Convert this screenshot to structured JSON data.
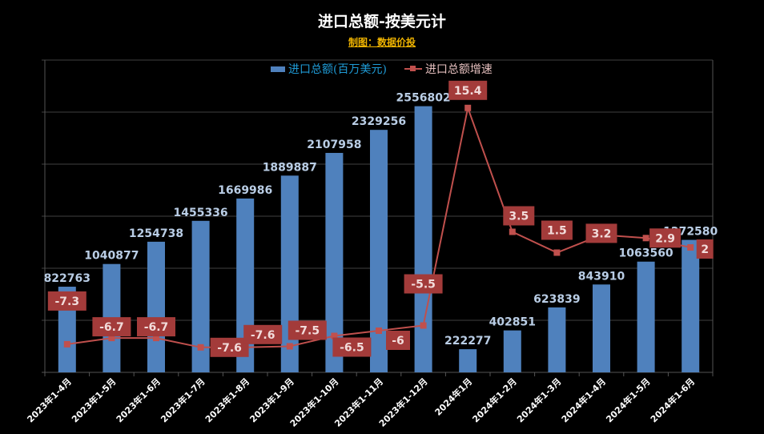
{
  "chart_data": {
    "type": "bar+line",
    "title": "进口总额-按美元计",
    "subtitle": "制图：数据价投",
    "categories": [
      "2023年1-4月",
      "2023年1-5月",
      "2023年1-6月",
      "2023年1-7月",
      "2023年1-8月",
      "2023年1-9月",
      "2023年1-10月",
      "2023年1-11月",
      "2023年1-12月",
      "2024年1月",
      "2024年1-2月",
      "2024年1-3月",
      "2024年1-4月",
      "2024年1-5月",
      "2024年1-6月"
    ],
    "series": [
      {
        "name": "进口总额(百万美元)",
        "type": "bar",
        "axis": "primary",
        "color": "#4f81bd",
        "values": [
          822763,
          1040877,
          1254738,
          1455336,
          1669986,
          1889887,
          2107958,
          2329256,
          2556802,
          222277,
          402851,
          623839,
          843910,
          1063560,
          1272580
        ]
      },
      {
        "name": "进口总额增速",
        "type": "line",
        "axis": "secondary",
        "color": "#c0504d",
        "values": [
          -7.3,
          -6.7,
          -6.7,
          -7.6,
          -7.6,
          -7.5,
          -6.5,
          -6,
          -5.5,
          15.4,
          3.5,
          1.5,
          3.2,
          2.9,
          2
        ]
      }
    ],
    "ylim": [
      0,
      3000000
    ],
    "y2lim": [
      -10,
      20
    ],
    "grid": true,
    "legend": "top",
    "axis_labels_visible": false
  }
}
